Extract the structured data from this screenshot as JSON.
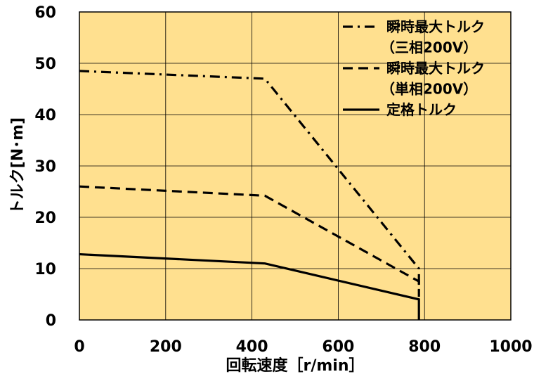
{
  "chart_data": {
    "type": "line",
    "xlabel": "回転速度［r/min］",
    "ylabel": "トルク[N･m]",
    "xlim": [
      0,
      1000
    ],
    "ylim": [
      0,
      60
    ],
    "xticks": [
      "0",
      "200",
      "400",
      "600",
      "800",
      "1000"
    ],
    "yticks": [
      "0",
      "10",
      "20",
      "30",
      "40",
      "50",
      "60"
    ],
    "grid": true,
    "background_color": "#FFE08F",
    "legend_position": "top-right",
    "series": [
      {
        "name": "瞬時最大トルク",
        "name_line2": "（三相200V）",
        "style": "dash-dot",
        "x": [
          0,
          430,
          787,
          787
        ],
        "y": [
          48.5,
          47,
          10,
          5
        ]
      },
      {
        "name": "瞬時最大トルク",
        "name_line2": "（単相200V）",
        "style": "dashed",
        "x": [
          0,
          430,
          787,
          787
        ],
        "y": [
          26,
          24.2,
          7.5,
          4.5
        ]
      },
      {
        "name": "定格トルク",
        "style": "solid",
        "x": [
          0,
          430,
          787,
          787
        ],
        "y": [
          12.8,
          11,
          4,
          0
        ]
      }
    ]
  }
}
